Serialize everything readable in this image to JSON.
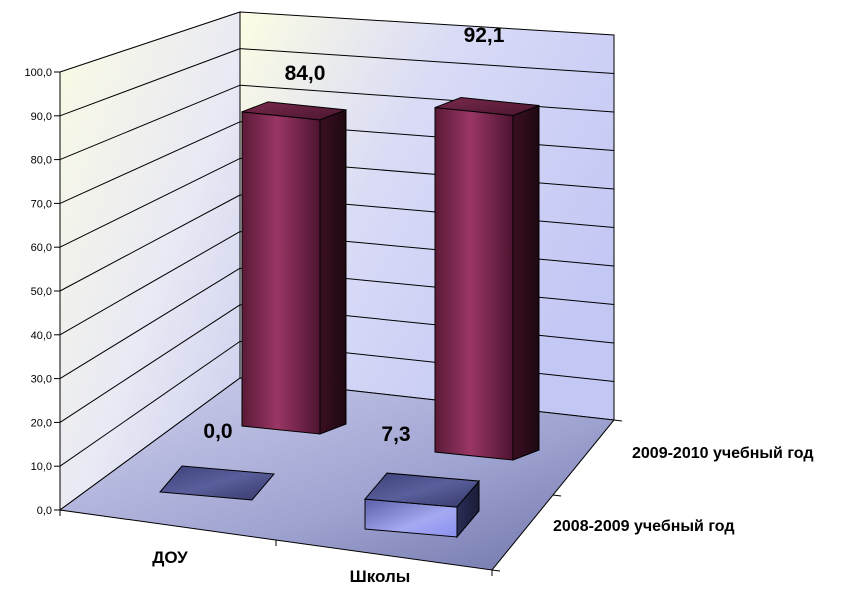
{
  "chart_data": {
    "type": "bar",
    "title": "",
    "xlabel": "",
    "ylabel": "",
    "ylim": [
      0,
      100
    ],
    "y_ticks": [
      "0,0",
      "10,0",
      "20,0",
      "30,0",
      "40,0",
      "50,0",
      "60,0",
      "70,0",
      "80,0",
      "90,0",
      "100,0"
    ],
    "categories": [
      "ДОУ",
      "Школы"
    ],
    "grid": true,
    "series": [
      {
        "name": "2008-2009 учебный год",
        "values": [
          0.0,
          7.3
        ],
        "labels": [
          "0,0",
          "7,3"
        ],
        "color": "#7b7fe0"
      },
      {
        "name": "2009-2010 учебный год",
        "values": [
          84.0,
          92.1
        ],
        "labels": [
          "84,0",
          "92,1"
        ],
        "color": "#8c2f57"
      }
    ]
  }
}
